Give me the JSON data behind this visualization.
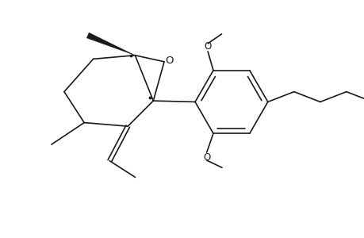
{
  "bg_color": "#ffffff",
  "line_color": "#1a1a1a",
  "line_width": 1.2,
  "font_size": 8.5,
  "fig_width": 4.6,
  "fig_height": 3.0,
  "dpi": 100,
  "xlim": [
    0,
    10
  ],
  "ylim": [
    0,
    6.5
  ]
}
